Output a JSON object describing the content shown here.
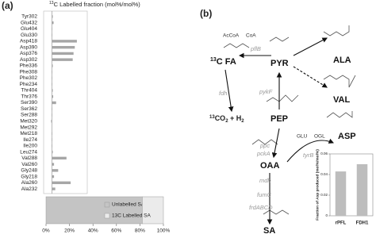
{
  "panels": {
    "a": "(a)",
    "b": "(b)"
  },
  "chart_data": [
    {
      "type": "hbar",
      "title_sup": "13",
      "title": "C Labelled fraction (mol%/mol%)",
      "categories": [
        "Tyr302",
        "Glu432",
        "Glu404",
        "Glu330",
        "Asp418",
        "Asp390",
        "Asp376",
        "Asp302",
        "Phe336",
        "Phe308",
        "Phe302",
        "Phe234",
        "Thr404",
        "Thr376",
        "Ser390",
        "Ser362",
        "Ser288",
        "Met320",
        "Met292",
        "Met218",
        "Ile274",
        "Ile200",
        "Leu274",
        "Val288",
        "Val260",
        "Gly248",
        "Gly218",
        "Ala260",
        "Ala232"
      ],
      "values": [
        0.002,
        0.004,
        0.001,
        0.001,
        0.06,
        0.055,
        0.052,
        0.05,
        0.002,
        0.001,
        0.001,
        0.001,
        0.002,
        0.003,
        0.01,
        0.001,
        0.001,
        -0.002,
        0,
        0.001,
        0.001,
        0.001,
        0.002,
        0.035,
        0.005,
        0.015,
        0.005,
        0.045,
        0.008
      ],
      "color": "#a6a6a6",
      "xlim": [
        -0.02,
        0.085
      ]
    },
    {
      "type": "stacked-hbar",
      "series": [
        {
          "name": "Unlabelled SA",
          "color": "#c4c4c4",
          "values": [
            82
          ]
        },
        {
          "name": "13C Labelled SA",
          "color": "#ebebeb",
          "values": [
            18
          ]
        }
      ],
      "xlim": [
        0,
        100
      ],
      "xticks": [
        {
          "value": 0,
          "label": "0%"
        },
        {
          "value": 20,
          "label": "20%"
        },
        {
          "value": 40,
          "label": "40%"
        },
        {
          "value": 60,
          "label": "60%"
        },
        {
          "value": 80,
          "label": "80%"
        },
        {
          "value": 100,
          "label": "100%"
        }
      ]
    },
    {
      "type": "bar",
      "ylabel": "Fraction of Asp produced (mol%/mol%)",
      "categories": [
        "rPFL",
        "FDH1"
      ],
      "values": [
        0.043,
        0.05
      ],
      "color": "#bdbdbd",
      "ylim": [
        0,
        0.06
      ],
      "yticks": [
        0,
        0.02,
        0.04,
        0.06
      ]
    }
  ],
  "diagram": {
    "AcCoA": "AcCoA",
    "CoA": "CoA",
    "FA": {
      "sup": "13",
      "text": "C FA"
    },
    "PYR": "PYR",
    "ALA": "ALA",
    "VAL": "VAL",
    "PEP": "PEP",
    "OAA": "OAA",
    "ASP": "ASP",
    "SA": "SA",
    "CO2": {
      "sup": "13",
      "a": "CO",
      "sub1": "2",
      "b": " + H",
      "sub2": "2"
    },
    "enzymes": {
      "pflB": "pflB",
      "fdh": "fdh",
      "pykF": "pykF",
      "ppc": "ppc",
      "pckA": "pckA",
      "tyrB": "tyrB",
      "mdh": "mdh",
      "fumC": "fumC",
      "frdABCD": "frdABCD"
    },
    "GLU": "GLU",
    "OGL": "OGL"
  }
}
